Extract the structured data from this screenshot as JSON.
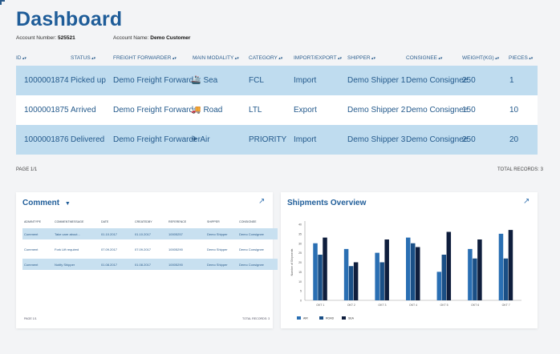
{
  "header": {
    "title": "Dashboard",
    "account_number_label": "Account Number:",
    "account_number": "525521",
    "account_name_label": "Account Name:",
    "account_name": "Demo Customer"
  },
  "shipments_table": {
    "columns": [
      "ID",
      "STATUS",
      "FREIGHT FORWARDER",
      "MAIN MODALITY",
      "CATEGORY",
      "IMPORT/EXPORT",
      "SHIPPER",
      "CONSIGNEE",
      "WEIGHT(KG)",
      "PIECES"
    ],
    "rows": [
      {
        "id": "1000001874",
        "status": "Picked up",
        "forwarder": "Demo Freight Forwarder",
        "modality": "Sea",
        "modality_icon": "ship-icon",
        "category": "FCL",
        "direction": "Import",
        "shipper": "Demo Shipper 1",
        "consignee": "Demo Consignee",
        "weight": "250",
        "pieces": "1"
      },
      {
        "id": "1000001875",
        "status": "Arrived",
        "forwarder": "Demo Freight Forwarder",
        "modality": "Road",
        "modality_icon": "truck-icon",
        "category": "LTL",
        "direction": "Export",
        "shipper": "Demo Shipper 2",
        "consignee": "Demo Consignee",
        "weight": "150",
        "pieces": "10"
      },
      {
        "id": "1000001876",
        "status": "Delivered",
        "forwarder": "Demo Freight Forwarder",
        "modality": "Air",
        "modality_icon": "plane-icon",
        "category": "PRIORITY",
        "direction": "Import",
        "shipper": "Demo Shipper 3",
        "consignee": "Demo Consignee",
        "weight": "250",
        "pieces": "20"
      }
    ],
    "page_label": "PAGE 1/1",
    "total_records": "TOTAL RECORDS: 3"
  },
  "comment_card": {
    "title": "Comment",
    "columns": [
      "ADMINTYPE",
      "COMMENTMESSAGE",
      "DATE",
      "CREATEDBY",
      "REFERENCE",
      "SHIPPER",
      "CONSIGNEE"
    ],
    "rows": [
      [
        "Comment",
        "Take care about...",
        "01.10.2017",
        "01.10.2017",
        "10005257",
        "Demo Shipper",
        "Demo Consignee"
      ],
      [
        "Comment",
        "Fork Lift required",
        "07.09.2017",
        "07.09.2017",
        "10005290",
        "Demo Shipper",
        "Demo Consignee"
      ],
      [
        "Comment",
        "Notify Shipper",
        "01.08.2017",
        "01.08.2017",
        "10005290",
        "Demo Shipper",
        "Demo Consignee"
      ]
    ],
    "page_label": "PAGE 1/1",
    "total_records": "TOTAL RECORDS: 3"
  },
  "overview_card": {
    "title": "Shipments Overview"
  },
  "chart_data": {
    "type": "bar",
    "title": "Shipments Overview",
    "ylabel": "Number of Shipments",
    "ylim": [
      0,
      40
    ],
    "yticks": [
      0,
      5,
      10,
      15,
      20,
      25,
      30,
      35,
      40
    ],
    "categories": [
      "OKT 1",
      "OKT 2",
      "OKT 3",
      "OKT 4",
      "OKT 5",
      "OKT 6",
      "OKT 7"
    ],
    "series": [
      {
        "name": "AIR",
        "color": "#2a6fb3",
        "values": [
          30,
          27,
          25,
          33,
          15,
          27,
          35
        ]
      },
      {
        "name": "ROAD",
        "color": "#1a4f86",
        "values": [
          24,
          18,
          20,
          30,
          24,
          22,
          22
        ]
      },
      {
        "name": "SEA",
        "color": "#0f1e3d",
        "values": [
          33,
          20,
          32,
          28,
          36,
          32,
          37
        ]
      }
    ],
    "legend_position": "bottom-left"
  },
  "colors": {
    "brand": "#1f5d99",
    "row_highlight": "#bfdcef",
    "background": "#f3f4f6"
  }
}
